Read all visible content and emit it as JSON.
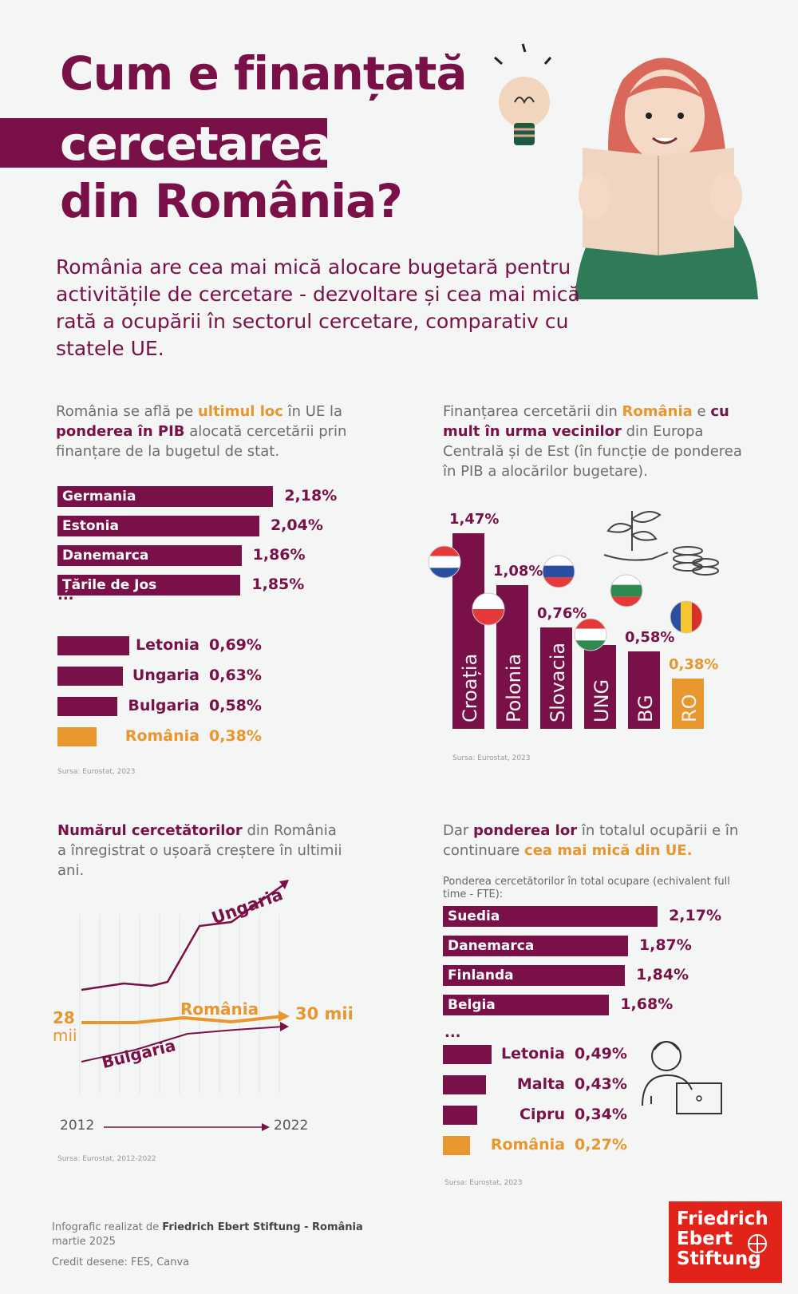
{
  "title": {
    "line1": "Cum e finanțată",
    "line2": "cercetarea",
    "line3": "din România?"
  },
  "intro": "România are cea mai mică alocare bugetară pentru activitățile de cercetare - dezvoltare și cea mai mică rată a ocupării în sectorul cercetare, comparativ cu statele UE.",
  "colors": {
    "primary": "#7a1048",
    "accent": "#e8962e",
    "background": "#f3f6f4",
    "fes_red": "#e2231a"
  },
  "section1": {
    "text_a": "România se află pe ",
    "text_b": "ultimul loc",
    "text_c": " în UE la ",
    "text_d": "ponderea în PIB",
    "text_e": " alocată cercetării prin finanțare de la bugetul de stat.",
    "ellipsis": "...",
    "source": "Sursa: Eurostat, 2023"
  },
  "section2": {
    "text_a": "Finanțarea cercetării din ",
    "text_b": "România",
    "text_c": " e ",
    "text_d": "cu mult în urma vecinilor",
    "text_e": " din Europa Centrală și de Est (în funcție de ponderea în PIB a alocărilor bugetare).",
    "source": "Sursa: Eurostat, 2023"
  },
  "section3": {
    "text_a": "Numărul cercetătorilor",
    "text_b": " din România a înregistrat o ușoară creștere în ultimii ani.",
    "start_label_1": "28",
    "start_label_2": "mii",
    "end_label": "30 mii",
    "year_start": "2012",
    "year_end": "2022",
    "source": "Sursa: Eurostat, 2012-2022"
  },
  "section4": {
    "text_a": "Dar ",
    "text_b": "ponderea lor",
    "text_c": " în totalul ocupării e în continuare ",
    "text_d": "cea mai mică din UE.",
    "subtitle": "Ponderea cercetătorilor în total ocupare (echivalent full time - FTE):",
    "ellipsis": "...",
    "source": "Sursa: Eurostat, 2023"
  },
  "footer": {
    "line1_a": "Infografic realizat de ",
    "line1_b": "Friedrich Ebert Stiftung - România",
    "line2": "martie 2025",
    "line3": "Credit desene: FES, Canva"
  },
  "logo": {
    "line1": "Friedrich",
    "line2": "Ebert",
    "line3": "Stiftung"
  },
  "chart_data": [
    {
      "type": "bar",
      "orientation": "horizontal",
      "categories": [
        "Germania",
        "Estonia",
        "Danemarca",
        "Țările de Jos",
        "Letonia",
        "Ungaria",
        "Bulgaria",
        "România"
      ],
      "values": [
        2.18,
        2.04,
        1.86,
        1.85,
        0.69,
        0.63,
        0.58,
        0.38
      ],
      "value_labels": [
        "2,18%",
        "2,04%",
        "1,86%",
        "1,85%",
        "0,69%",
        "0,63%",
        "0,58%",
        "0,38%"
      ],
      "highlight": "România"
    },
    {
      "type": "bar",
      "orientation": "vertical",
      "categories": [
        "Croația",
        "Polonia",
        "Slovacia",
        "UNG",
        "BG",
        "RO"
      ],
      "values": [
        1.47,
        1.08,
        0.76,
        0.63,
        0.58,
        0.38
      ],
      "value_labels": [
        "1,47%",
        "1,08%",
        "0,76%",
        "",
        "0,58%",
        "0,38%"
      ],
      "highlight": "RO"
    },
    {
      "type": "line",
      "x": [
        "2012",
        "2022"
      ],
      "series": [
        {
          "name": "Ungaria"
        },
        {
          "name": "România",
          "start": 28,
          "end": 30,
          "unit": "mii"
        },
        {
          "name": "Bulgaria"
        }
      ],
      "grid": true
    },
    {
      "type": "bar",
      "orientation": "horizontal",
      "categories": [
        "Suedia",
        "Danemarca",
        "Finlanda",
        "Belgia",
        "Letonia",
        "Malta",
        "Cipru",
        "România"
      ],
      "values": [
        2.17,
        1.87,
        1.84,
        1.68,
        0.49,
        0.43,
        0.34,
        0.27
      ],
      "value_labels": [
        "2,17%",
        "1,87%",
        "1,84%",
        "1,68%",
        "0,49%",
        "0,43%",
        "0,34%",
        "0,27%"
      ],
      "highlight": "România"
    }
  ]
}
